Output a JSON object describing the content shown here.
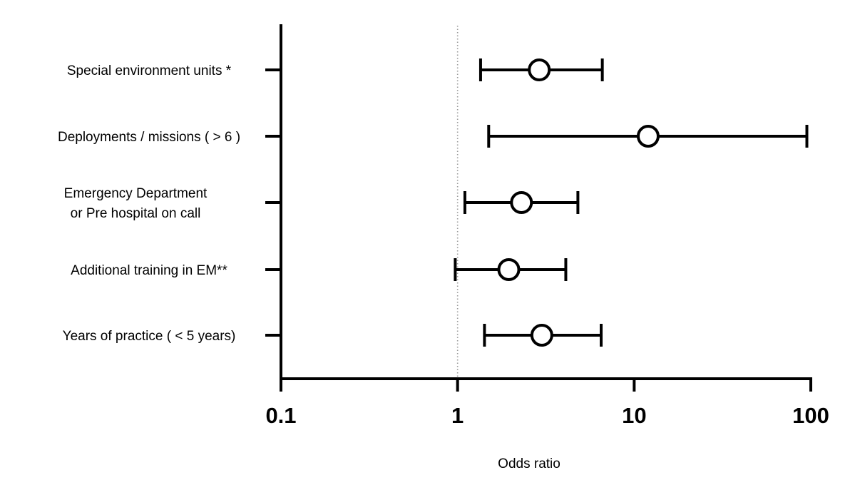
{
  "chart_data": {
    "type": "scatter",
    "subtype": "forest-plot",
    "title": "",
    "xlabel": "Odds ratio",
    "ylabel": "",
    "xscale": "log",
    "xlim": [
      0.1,
      100
    ],
    "xticks": [
      "0.1",
      "1",
      "10",
      "100"
    ],
    "reference_line": 1,
    "grid": false,
    "legend": "none",
    "colors": {
      "marks": "#000000",
      "reference_line": "#999999",
      "background": "#ffffff"
    },
    "rows": [
      {
        "label": [
          "Special environment units *"
        ],
        "or": 2.9,
        "ci_low": 1.35,
        "ci_high": 6.6
      },
      {
        "label": [
          "Deployments / missions ( > 6 )"
        ],
        "or": 12.0,
        "ci_low": 1.5,
        "ci_high": 95.0
      },
      {
        "label": [
          "Emergency Department",
          "or Pre hospital on call"
        ],
        "or": 2.3,
        "ci_low": 1.1,
        "ci_high": 4.8
      },
      {
        "label": [
          "Additional training in EM**"
        ],
        "or": 1.95,
        "ci_low": 0.97,
        "ci_high": 4.1
      },
      {
        "label": [
          "Years of practice ( < 5 years)"
        ],
        "or": 3.0,
        "ci_low": 1.42,
        "ci_high": 6.5
      }
    ]
  }
}
